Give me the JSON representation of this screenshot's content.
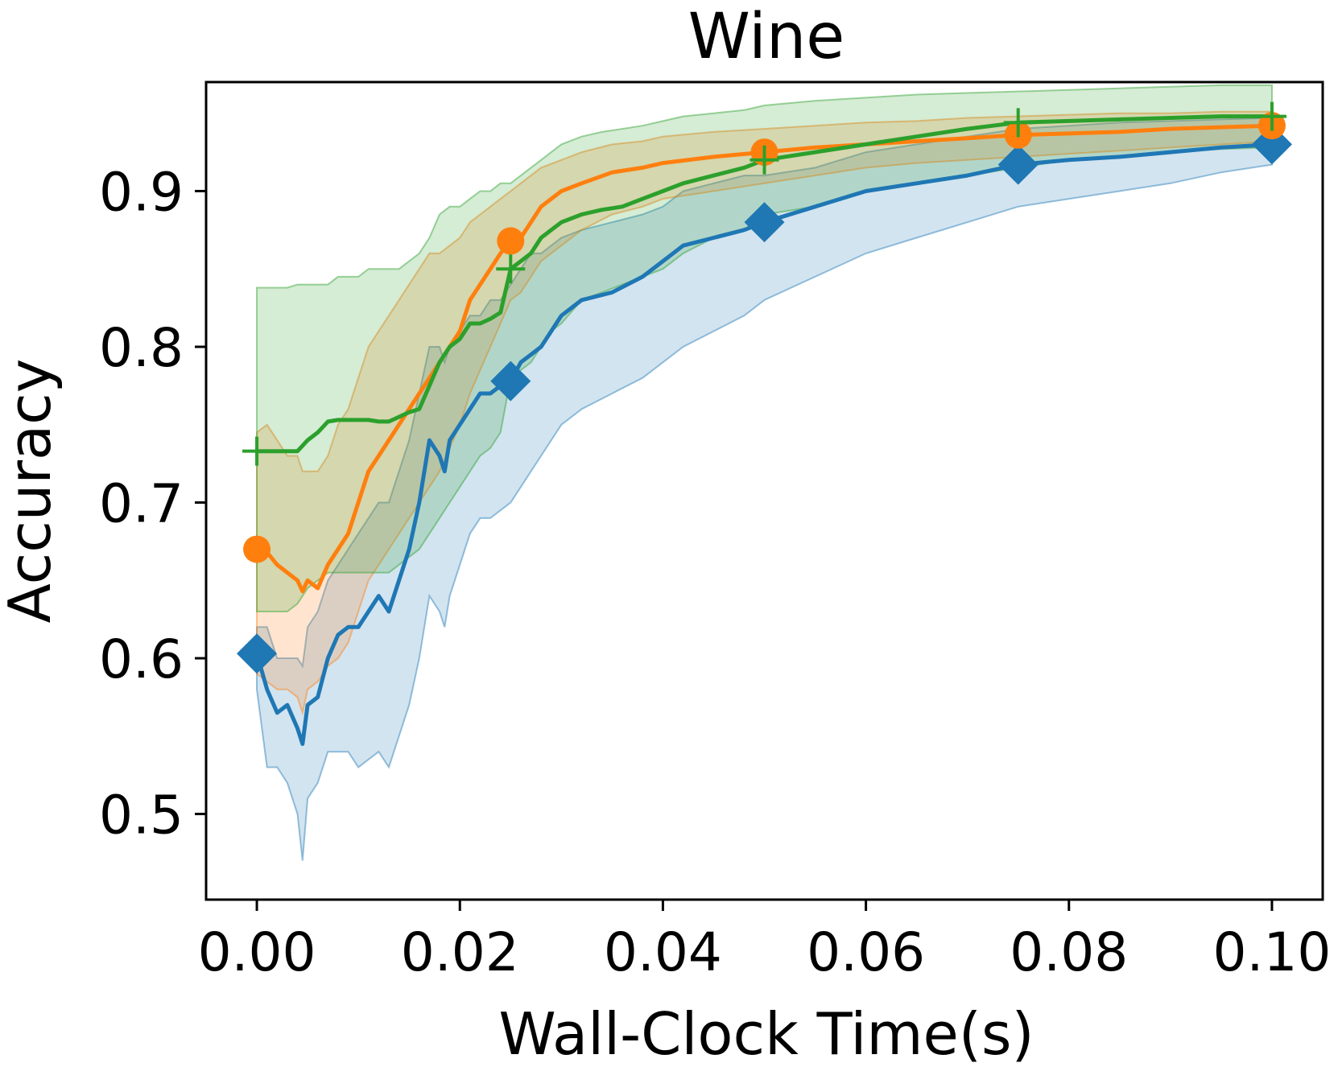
{
  "chart_data": {
    "type": "line",
    "title": "Wine",
    "xlabel": "Wall-Clock Time(s)",
    "ylabel": "Accuracy",
    "xlim": [
      -0.005,
      0.105
    ],
    "ylim": [
      0.445,
      0.97
    ],
    "xticks": [
      0.0,
      0.02,
      0.04,
      0.06,
      0.08,
      0.1
    ],
    "xtick_labels": [
      "0.00",
      "0.02",
      "0.04",
      "0.06",
      "0.08",
      "0.10"
    ],
    "yticks": [
      0.5,
      0.6,
      0.7,
      0.8,
      0.9
    ],
    "ytick_labels": [
      "0.5",
      "0.6",
      "0.7",
      "0.8",
      "0.9"
    ],
    "grid": false,
    "legend": "none",
    "series": [
      {
        "color": "#1f77b4",
        "marker": "diamond",
        "marker_x": [
          0.0,
          0.025,
          0.05,
          0.075,
          0.1
        ],
        "x": [
          0.0,
          0.001,
          0.002,
          0.003,
          0.004,
          0.0045,
          0.005,
          0.006,
          0.007,
          0.008,
          0.009,
          0.01,
          0.011,
          0.012,
          0.013,
          0.014,
          0.015,
          0.016,
          0.017,
          0.018,
          0.0185,
          0.019,
          0.02,
          0.021,
          0.022,
          0.023,
          0.024,
          0.025,
          0.026,
          0.027,
          0.028,
          0.03,
          0.032,
          0.035,
          0.038,
          0.04,
          0.042,
          0.045,
          0.048,
          0.05,
          0.055,
          0.06,
          0.065,
          0.07,
          0.075,
          0.08,
          0.085,
          0.09,
          0.095,
          0.1
        ],
        "y": [
          0.603,
          0.58,
          0.565,
          0.57,
          0.555,
          0.545,
          0.57,
          0.575,
          0.6,
          0.615,
          0.62,
          0.62,
          0.63,
          0.64,
          0.63,
          0.65,
          0.67,
          0.7,
          0.74,
          0.73,
          0.72,
          0.74,
          0.75,
          0.76,
          0.77,
          0.77,
          0.775,
          0.778,
          0.79,
          0.795,
          0.8,
          0.82,
          0.83,
          0.835,
          0.845,
          0.855,
          0.865,
          0.87,
          0.875,
          0.88,
          0.89,
          0.9,
          0.905,
          0.91,
          0.917,
          0.92,
          0.922,
          0.925,
          0.928,
          0.93
        ],
        "band_upper": [
          0.62,
          0.62,
          0.6,
          0.6,
          0.6,
          0.595,
          0.62,
          0.63,
          0.65,
          0.66,
          0.67,
          0.68,
          0.69,
          0.7,
          0.7,
          0.72,
          0.74,
          0.77,
          0.8,
          0.8,
          0.79,
          0.8,
          0.81,
          0.82,
          0.82,
          0.83,
          0.83,
          0.84,
          0.85,
          0.86,
          0.86,
          0.87,
          0.875,
          0.88,
          0.885,
          0.89,
          0.9,
          0.905,
          0.91,
          0.91,
          0.915,
          0.925,
          0.93,
          0.935,
          0.94,
          0.942,
          0.944,
          0.945,
          0.946,
          0.947
        ],
        "band_lower": [
          0.58,
          0.53,
          0.53,
          0.52,
          0.5,
          0.47,
          0.51,
          0.52,
          0.54,
          0.54,
          0.54,
          0.53,
          0.535,
          0.54,
          0.53,
          0.55,
          0.57,
          0.6,
          0.64,
          0.63,
          0.62,
          0.64,
          0.66,
          0.68,
          0.69,
          0.69,
          0.695,
          0.7,
          0.71,
          0.72,
          0.73,
          0.75,
          0.76,
          0.77,
          0.78,
          0.79,
          0.8,
          0.81,
          0.82,
          0.83,
          0.845,
          0.86,
          0.87,
          0.88,
          0.89,
          0.895,
          0.9,
          0.905,
          0.912,
          0.917
        ]
      },
      {
        "color": "#ff7f0e",
        "marker": "circle",
        "marker_x": [
          0.0,
          0.025,
          0.05,
          0.075,
          0.1
        ],
        "x": [
          0.0,
          0.001,
          0.002,
          0.003,
          0.004,
          0.0045,
          0.005,
          0.006,
          0.007,
          0.008,
          0.009,
          0.01,
          0.011,
          0.012,
          0.013,
          0.014,
          0.015,
          0.016,
          0.017,
          0.018,
          0.019,
          0.02,
          0.021,
          0.022,
          0.023,
          0.024,
          0.025,
          0.026,
          0.027,
          0.028,
          0.03,
          0.032,
          0.035,
          0.038,
          0.04,
          0.045,
          0.05,
          0.055,
          0.06,
          0.065,
          0.07,
          0.075,
          0.08,
          0.085,
          0.09,
          0.095,
          0.1
        ],
        "y": [
          0.67,
          0.668,
          0.66,
          0.655,
          0.65,
          0.643,
          0.65,
          0.645,
          0.66,
          0.67,
          0.68,
          0.7,
          0.72,
          0.73,
          0.74,
          0.75,
          0.76,
          0.77,
          0.78,
          0.79,
          0.8,
          0.81,
          0.83,
          0.84,
          0.85,
          0.86,
          0.868,
          0.87,
          0.88,
          0.89,
          0.9,
          0.905,
          0.912,
          0.915,
          0.918,
          0.922,
          0.925,
          0.928,
          0.93,
          0.932,
          0.934,
          0.936,
          0.937,
          0.938,
          0.94,
          0.941,
          0.942
        ],
        "band_upper": [
          0.745,
          0.75,
          0.74,
          0.73,
          0.73,
          0.72,
          0.72,
          0.72,
          0.73,
          0.75,
          0.76,
          0.78,
          0.8,
          0.81,
          0.82,
          0.83,
          0.84,
          0.85,
          0.86,
          0.86,
          0.865,
          0.87,
          0.88,
          0.885,
          0.89,
          0.895,
          0.9,
          0.905,
          0.91,
          0.915,
          0.92,
          0.925,
          0.93,
          0.932,
          0.935,
          0.938,
          0.94,
          0.942,
          0.944,
          0.945,
          0.947,
          0.948,
          0.949,
          0.95,
          0.95,
          0.951,
          0.951
        ],
        "band_lower": [
          0.59,
          0.585,
          0.58,
          0.58,
          0.575,
          0.565,
          0.58,
          0.585,
          0.595,
          0.6,
          0.61,
          0.63,
          0.65,
          0.66,
          0.67,
          0.68,
          0.69,
          0.7,
          0.71,
          0.72,
          0.735,
          0.75,
          0.77,
          0.785,
          0.8,
          0.815,
          0.83,
          0.835,
          0.845,
          0.855,
          0.865,
          0.875,
          0.885,
          0.89,
          0.895,
          0.9,
          0.905,
          0.91,
          0.915,
          0.918,
          0.92,
          0.922,
          0.924,
          0.926,
          0.928,
          0.93,
          0.932
        ]
      },
      {
        "color": "#2ca02c",
        "marker": "plus",
        "marker_x": [
          0.0,
          0.025,
          0.05,
          0.075,
          0.1
        ],
        "x": [
          0.0,
          0.001,
          0.002,
          0.003,
          0.004,
          0.005,
          0.006,
          0.007,
          0.008,
          0.009,
          0.01,
          0.011,
          0.012,
          0.013,
          0.014,
          0.015,
          0.016,
          0.017,
          0.018,
          0.019,
          0.02,
          0.021,
          0.022,
          0.023,
          0.024,
          0.025,
          0.026,
          0.027,
          0.028,
          0.029,
          0.03,
          0.032,
          0.034,
          0.036,
          0.038,
          0.04,
          0.042,
          0.045,
          0.048,
          0.05,
          0.055,
          0.06,
          0.065,
          0.07,
          0.075,
          0.08,
          0.085,
          0.09,
          0.095,
          0.1
        ],
        "y": [
          0.733,
          0.733,
          0.733,
          0.733,
          0.733,
          0.74,
          0.745,
          0.752,
          0.753,
          0.753,
          0.753,
          0.753,
          0.752,
          0.752,
          0.755,
          0.758,
          0.76,
          0.775,
          0.79,
          0.8,
          0.805,
          0.815,
          0.815,
          0.818,
          0.822,
          0.85,
          0.855,
          0.86,
          0.87,
          0.875,
          0.88,
          0.885,
          0.888,
          0.89,
          0.895,
          0.9,
          0.905,
          0.91,
          0.915,
          0.92,
          0.925,
          0.93,
          0.935,
          0.94,
          0.944,
          0.945,
          0.946,
          0.947,
          0.948,
          0.948
        ],
        "band_upper": [
          0.838,
          0.838,
          0.838,
          0.838,
          0.84,
          0.84,
          0.84,
          0.84,
          0.845,
          0.845,
          0.845,
          0.85,
          0.85,
          0.85,
          0.85,
          0.855,
          0.86,
          0.87,
          0.885,
          0.89,
          0.89,
          0.895,
          0.9,
          0.9,
          0.905,
          0.905,
          0.91,
          0.915,
          0.92,
          0.925,
          0.93,
          0.935,
          0.938,
          0.94,
          0.942,
          0.945,
          0.948,
          0.95,
          0.952,
          0.955,
          0.958,
          0.96,
          0.962,
          0.963,
          0.964,
          0.965,
          0.966,
          0.967,
          0.968,
          0.968
        ],
        "band_lower": [
          0.63,
          0.63,
          0.63,
          0.63,
          0.635,
          0.645,
          0.65,
          0.655,
          0.655,
          0.655,
          0.655,
          0.655,
          0.655,
          0.655,
          0.66,
          0.665,
          0.67,
          0.68,
          0.69,
          0.7,
          0.71,
          0.72,
          0.73,
          0.735,
          0.745,
          0.78,
          0.785,
          0.79,
          0.8,
          0.81,
          0.815,
          0.83,
          0.835,
          0.84,
          0.845,
          0.85,
          0.86,
          0.87,
          0.875,
          0.885,
          0.89,
          0.9,
          0.905,
          0.91,
          0.915,
          0.92,
          0.922,
          0.925,
          0.927,
          0.928
        ]
      }
    ]
  }
}
